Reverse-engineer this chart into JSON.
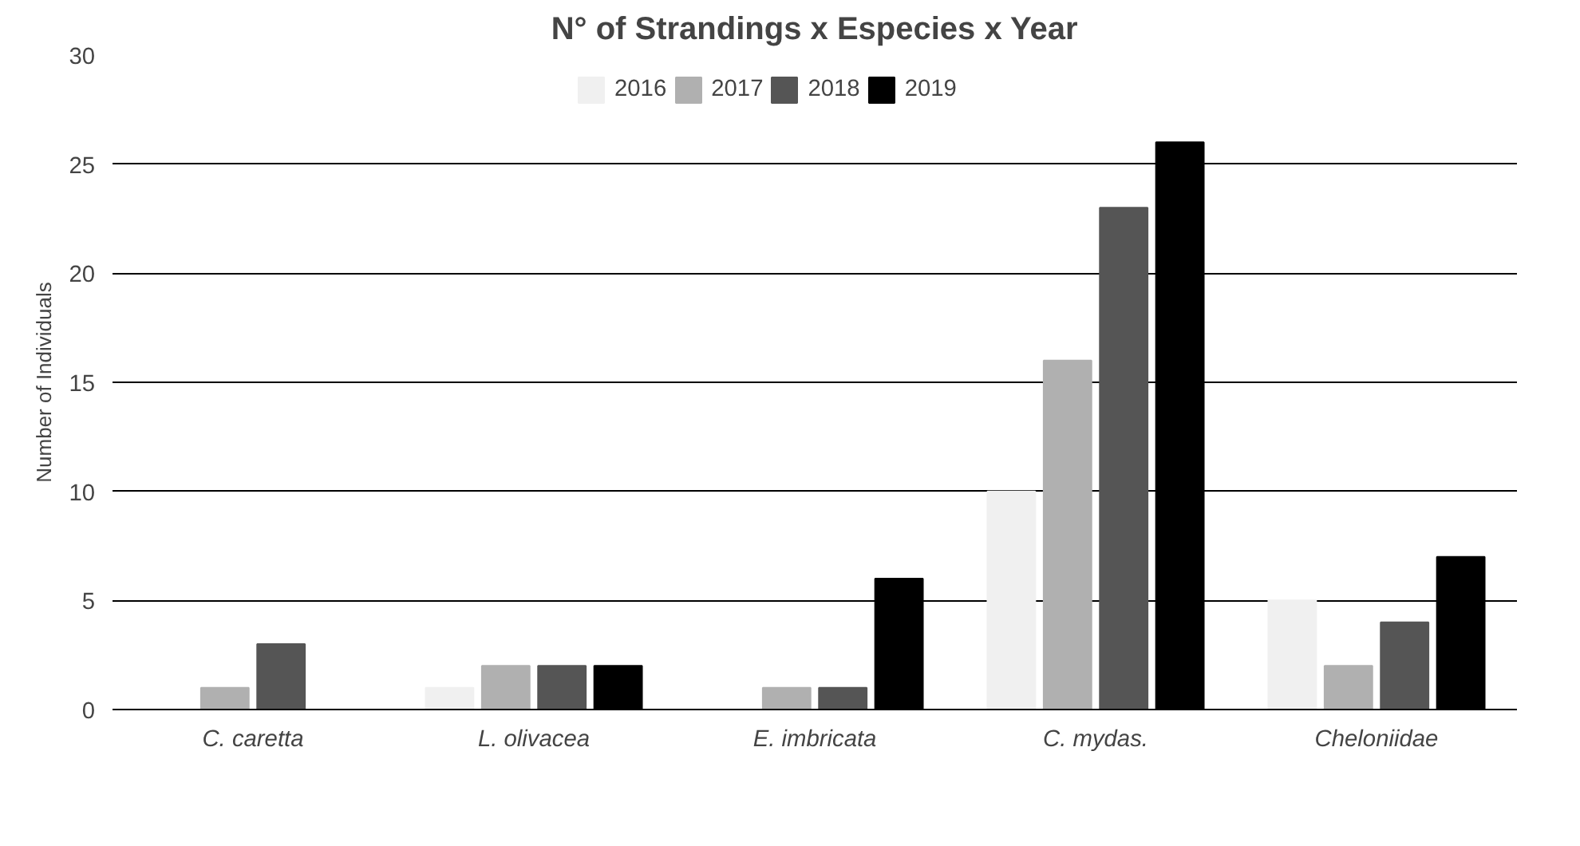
{
  "chart_data": {
    "type": "bar",
    "title": "N° of Strandings x Especies x Year",
    "ylabel": "Number of Individuals",
    "categories": [
      "C. caretta",
      "L. olivacea",
      "E. imbricata",
      "C. mydas.",
      "Cheloniidae"
    ],
    "series": [
      {
        "name": "2016",
        "color": "#f0f0f0",
        "values": [
          0,
          1,
          0,
          10,
          5
        ]
      },
      {
        "name": "2017",
        "color": "#b0b0b0",
        "values": [
          1,
          2,
          1,
          16,
          2
        ]
      },
      {
        "name": "2018",
        "color": "#555555",
        "values": [
          3,
          2,
          1,
          23,
          4
        ]
      },
      {
        "name": "2019",
        "color": "#000000",
        "values": [
          0,
          2,
          6,
          26,
          7
        ]
      }
    ],
    "ylim": [
      0,
      30
    ],
    "yticks": [
      0,
      5,
      10,
      15,
      20,
      25,
      30
    ],
    "grid": "y",
    "legend": "top"
  }
}
